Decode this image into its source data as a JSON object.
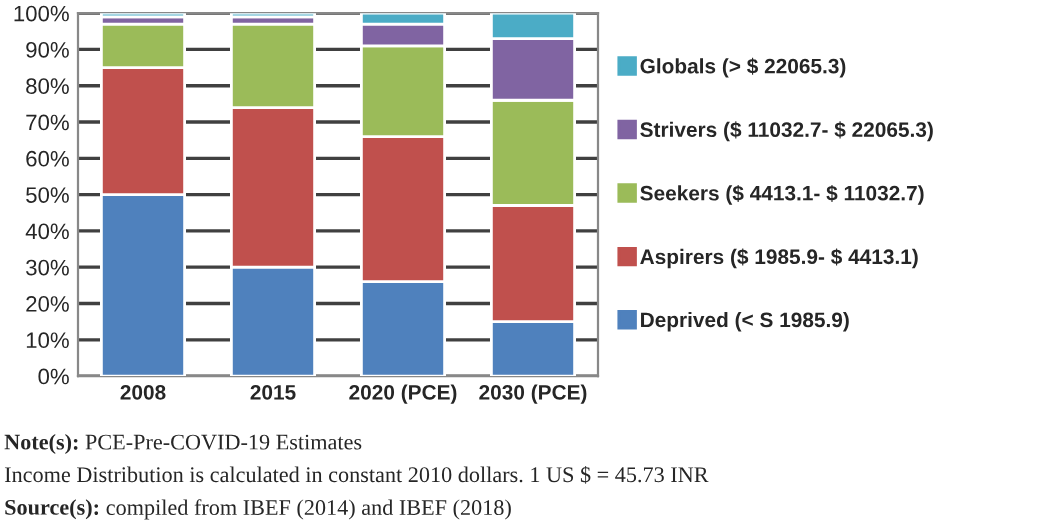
{
  "chart_data": {
    "type": "bar",
    "stacked": true,
    "categories": [
      "2008",
      "2015",
      "2020 (PCE)",
      "2030 (PCE)"
    ],
    "series": [
      {
        "name": "Deprived (< S 1985.9)",
        "color": "#4f81bd",
        "values": [
          50,
          30,
          26,
          15
        ]
      },
      {
        "name": "Aspirers ($ 1985.9- $ 4413.1)",
        "color": "#c0504d",
        "values": [
          35,
          44,
          40,
          32
        ]
      },
      {
        "name": "Seekers ($ 4413.1- $ 11032.7)",
        "color": "#9bbb59",
        "values": [
          12,
          23,
          25,
          29
        ]
      },
      {
        "name": "Strivers ($ 11032.7- $ 22065.3)",
        "color": "#8064a2",
        "values": [
          2,
          2,
          6,
          17
        ]
      },
      {
        "name": "Globals (> $ 22065.3)",
        "color": "#4bacc6",
        "values": [
          1,
          1,
          3,
          7
        ]
      }
    ],
    "ylim": [
      0,
      100
    ],
    "yticks": [
      {
        "value": 0,
        "label": "0%"
      },
      {
        "value": 10,
        "label": "10%"
      },
      {
        "value": 20,
        "label": "20%"
      },
      {
        "value": 30,
        "label": "30%"
      },
      {
        "value": 40,
        "label": "40%"
      },
      {
        "value": 50,
        "label": "50%"
      },
      {
        "value": 60,
        "label": "60%"
      },
      {
        "value": 70,
        "label": "70%"
      },
      {
        "value": 80,
        "label": "80%"
      },
      {
        "value": 90,
        "label": "90%"
      },
      {
        "value": 100,
        "label": "100%"
      }
    ],
    "grid": "y",
    "legend": "right",
    "annotations": [
      "Note(s): PCE-Pre-COVID-19 Estimates",
      "Income Distribution is calculated in constant 2010 dollars. 1 US $ = 45.73 INR",
      "Source(s): compiled from IBEF (2014) and IBEF (2018)"
    ]
  }
}
